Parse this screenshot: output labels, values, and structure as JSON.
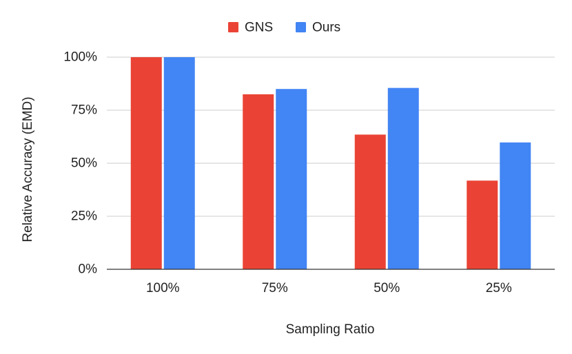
{
  "chart_data": {
    "type": "bar",
    "title": "",
    "xlabel": "Sampling Ratio",
    "ylabel": "Relative Accuracy (EMD)",
    "categories": [
      "100%",
      "75%",
      "50%",
      "25%"
    ],
    "ylim": [
      0,
      100
    ],
    "yticks": [
      0,
      25,
      50,
      75,
      100
    ],
    "ytick_labels": [
      "0%",
      "25%",
      "50%",
      "75%",
      "100%"
    ],
    "grid": true,
    "legend_position": "top-center",
    "series": [
      {
        "name": "GNS",
        "color": "#ea4335",
        "values": [
          100,
          82.5,
          63.5,
          41.8
        ]
      },
      {
        "name": "Ours",
        "color": "#4285f4",
        "values": [
          100,
          85,
          85.5,
          59.8
        ]
      }
    ]
  }
}
